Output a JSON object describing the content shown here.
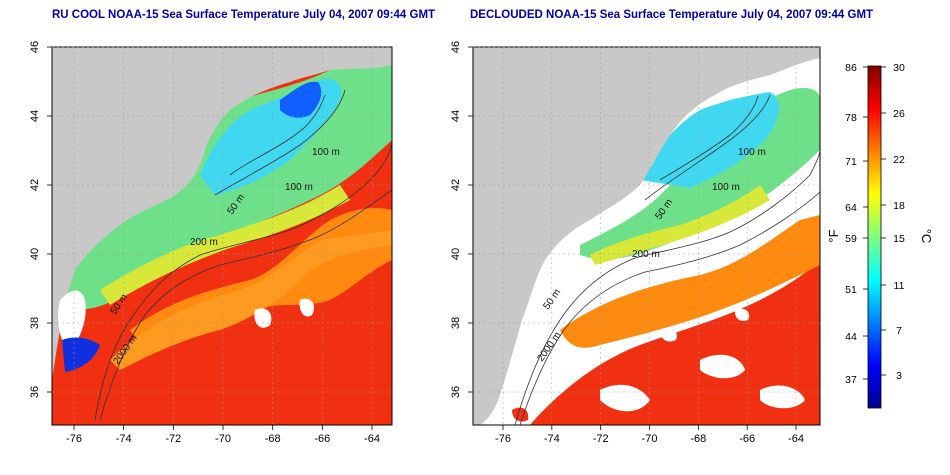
{
  "left_panel": {
    "title": "RU COOL NOAA-15 Sea Surface Temperature July 04, 2007 09:44 GMT",
    "x_ticks": [
      "-76",
      "-74",
      "-72",
      "-70",
      "-68",
      "-66",
      "-64"
    ],
    "y_ticks": [
      "46",
      "44",
      "42",
      "40",
      "38",
      "36"
    ],
    "contour_labels": [
      "100 m",
      "100 m",
      "50 m",
      "200 m",
      "50 m",
      "2000 m"
    ]
  },
  "right_panel": {
    "title": "DECLOUDED NOAA-15 Sea Surface Temperature July 04, 2007 09:44 GMT",
    "x_ticks": [
      "-76",
      "-74",
      "-72",
      "-70",
      "-68",
      "-66",
      "-64"
    ],
    "y_ticks": [
      "46",
      "44",
      "42",
      "40",
      "38",
      "36"
    ],
    "contour_labels": [
      "100 m",
      "100 m",
      "50 m",
      "200 m",
      "50 m",
      "2000 m"
    ]
  },
  "colorbar": {
    "fahrenheit_label": "°F",
    "celsius_label": "°C",
    "fahrenheit_ticks": [
      "86",
      "78",
      "71",
      "64",
      "59",
      "51",
      "44",
      "37"
    ],
    "celsius_ticks": [
      "30",
      "26",
      "22",
      "18",
      "15",
      "11",
      "7",
      "3"
    ],
    "colors": [
      "#00008f",
      "#0000ff",
      "#0080ff",
      "#00ffff",
      "#80ff80",
      "#ffff00",
      "#ff8000",
      "#ff0000",
      "#800000"
    ]
  },
  "colors": {
    "land": "#c8c8c8",
    "cloud": "#ffffff",
    "title": "#0000a0"
  }
}
